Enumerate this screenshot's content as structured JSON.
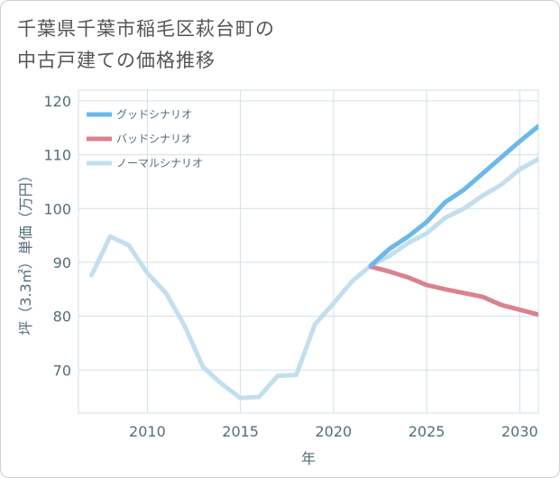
{
  "title": {
    "line1": "千葉県千葉市稲毛区萩台町の",
    "line2": "中古戸建ての価格推移"
  },
  "chart_data": {
    "type": "line",
    "xlabel": "年",
    "ylabel": "坪（3.3㎡）単価（万円）",
    "xlim": [
      2006.3,
      2031
    ],
    "ylim": [
      62,
      122
    ],
    "xticks": [
      2010,
      2015,
      2020,
      2025,
      2030
    ],
    "yticks": [
      70,
      80,
      90,
      100,
      110,
      120
    ],
    "grid": true,
    "legend_position": "top-left",
    "series": [
      {
        "name": "グッドシナリオ",
        "color": "#6cb8ea",
        "x": [
          2022,
          2023,
          2024,
          2025,
          2026,
          2027,
          2028,
          2029,
          2030,
          2031
        ],
        "values": [
          89.4,
          92.5,
          94.8,
          97.5,
          101.2,
          103.5,
          106.5,
          109.5,
          112.5,
          115.3
        ]
      },
      {
        "name": "バッドシナリオ",
        "color": "#d9838f",
        "x": [
          2022,
          2023,
          2024,
          2025,
          2026,
          2027,
          2028,
          2029,
          2030,
          2031
        ],
        "values": [
          89.2,
          88.3,
          87.2,
          85.8,
          85.0,
          84.3,
          83.6,
          82.1,
          81.2,
          80.3
        ]
      },
      {
        "name": "ノーマルシナリオ",
        "color": "#c3dfee",
        "x": [
          2007,
          2008,
          2009,
          2010,
          2011,
          2012,
          2013,
          2014,
          2015,
          2016,
          2017,
          2018,
          2019,
          2020,
          2021,
          2022,
          2023,
          2024,
          2025,
          2026,
          2027,
          2028,
          2029,
          2030,
          2031
        ],
        "values": [
          87.6,
          94.8,
          93.2,
          88.0,
          84.3,
          78.2,
          70.5,
          67.4,
          64.8,
          65.0,
          68.9,
          69.1,
          78.5,
          82.4,
          86.5,
          89.4,
          91.2,
          93.6,
          95.4,
          98.3,
          100.0,
          102.4,
          104.4,
          107.3,
          109.2
        ]
      }
    ]
  }
}
